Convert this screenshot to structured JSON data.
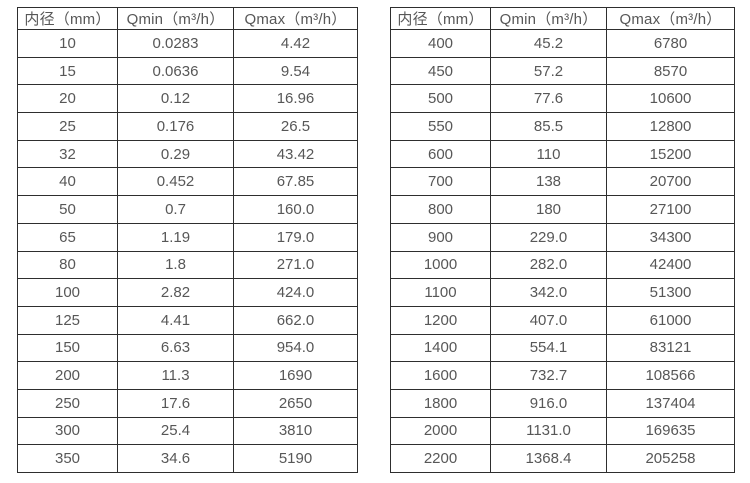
{
  "colors": {
    "background": "#ffffff",
    "border": "#2e2e2e",
    "text": "#575757"
  },
  "tables": [
    {
      "name": "flow-table-small-diameters",
      "headers": [
        "内径（mm）",
        "Qmin（m³/h）",
        "Qmax（m³/h）"
      ],
      "rows": [
        [
          "10",
          "0.0283",
          "4.42"
        ],
        [
          "15",
          "0.0636",
          "9.54"
        ],
        [
          "20",
          "0.12",
          "16.96"
        ],
        [
          "25",
          "0.176",
          "26.5"
        ],
        [
          "32",
          "0.29",
          "43.42"
        ],
        [
          "40",
          "0.452",
          "67.85"
        ],
        [
          "50",
          "0.7",
          "160.0"
        ],
        [
          "65",
          "1.19",
          "179.0"
        ],
        [
          "80",
          "1.8",
          "271.0"
        ],
        [
          "100",
          "2.82",
          "424.0"
        ],
        [
          "125",
          "4.41",
          "662.0"
        ],
        [
          "150",
          "6.63",
          "954.0"
        ],
        [
          "200",
          "11.3",
          "1690"
        ],
        [
          "250",
          "17.6",
          "2650"
        ],
        [
          "300",
          "25.4",
          "3810"
        ],
        [
          "350",
          "34.6",
          "5190"
        ]
      ]
    },
    {
      "name": "flow-table-large-diameters",
      "headers": [
        "内径（mm）",
        "Qmin（m³/h）",
        "Qmax（m³/h）"
      ],
      "rows": [
        [
          "400",
          "45.2",
          "6780"
        ],
        [
          "450",
          "57.2",
          "8570"
        ],
        [
          "500",
          "77.6",
          "10600"
        ],
        [
          "550",
          "85.5",
          "12800"
        ],
        [
          "600",
          "110",
          "15200"
        ],
        [
          "700",
          "138",
          "20700"
        ],
        [
          "800",
          "180",
          "27100"
        ],
        [
          "900",
          "229.0",
          "34300"
        ],
        [
          "1000",
          "282.0",
          "42400"
        ],
        [
          "1100",
          "342.0",
          "51300"
        ],
        [
          "1200",
          "407.0",
          "61000"
        ],
        [
          "1400",
          "554.1",
          "83121"
        ],
        [
          "1600",
          "732.7",
          "108566"
        ],
        [
          "1800",
          "916.0",
          "137404"
        ],
        [
          "2000",
          "1131.0",
          "169635"
        ],
        [
          "2200",
          "1368.4",
          "205258"
        ]
      ]
    }
  ]
}
